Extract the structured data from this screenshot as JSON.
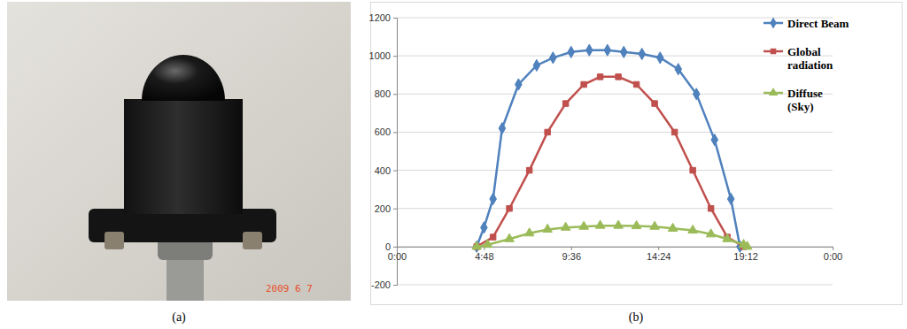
{
  "chart_data": {
    "type": "line",
    "xlim": [
      0,
      24
    ],
    "xticks": [
      {
        "value": 0,
        "label": "0:00"
      },
      {
        "value": 4.8,
        "label": "4:48"
      },
      {
        "value": 9.6,
        "label": "9:36"
      },
      {
        "value": 14.4,
        "label": "14:24"
      },
      {
        "value": 19.2,
        "label": "19:12"
      },
      {
        "value": 24,
        "label": "0:00"
      }
    ],
    "ylim": [
      -200,
      1200
    ],
    "yticks": [
      -200,
      0,
      200,
      400,
      600,
      800,
      1000,
      1200
    ],
    "grid": true,
    "legend": "top-right",
    "series": [
      {
        "name": "Direct Beam",
        "color": "#4f81bd",
        "marker": "diamond",
        "x": [
          4.4,
          4.8,
          5.3,
          5.8,
          6.7,
          7.7,
          8.6,
          9.6,
          10.6,
          11.6,
          12.5,
          13.5,
          14.5,
          15.5,
          16.5,
          17.5,
          18.4,
          18.9
        ],
        "values": [
          0,
          100,
          250,
          620,
          850,
          950,
          990,
          1020,
          1030,
          1030,
          1020,
          1010,
          990,
          930,
          800,
          560,
          250,
          0
        ]
      },
      {
        "name": "Global radiation",
        "color": "#c0504d",
        "marker": "square",
        "x": [
          4.4,
          5.3,
          6.2,
          7.3,
          8.3,
          9.3,
          10.3,
          11.2,
          12.2,
          13.2,
          14.2,
          15.3,
          16.3,
          17.3,
          18.2,
          19.1
        ],
        "values": [
          0,
          50,
          200,
          400,
          600,
          750,
          850,
          890,
          890,
          850,
          750,
          600,
          400,
          200,
          50,
          0
        ]
      },
      {
        "name": "Diffuse (Sky)",
        "color": "#9bbb59",
        "marker": "triangle",
        "x": [
          4.4,
          5.0,
          6.2,
          7.3,
          8.3,
          9.3,
          10.3,
          11.2,
          12.2,
          13.2,
          14.2,
          15.2,
          16.3,
          17.3,
          18.2,
          19.1,
          19.3
        ],
        "values": [
          0,
          10,
          40,
          70,
          90,
          100,
          105,
          110,
          110,
          108,
          105,
          95,
          85,
          65,
          40,
          10,
          0
        ]
      }
    ]
  },
  "captions": [
    "(a)",
    "(b)"
  ],
  "photo": {
    "stamp": "2009 6 7"
  }
}
